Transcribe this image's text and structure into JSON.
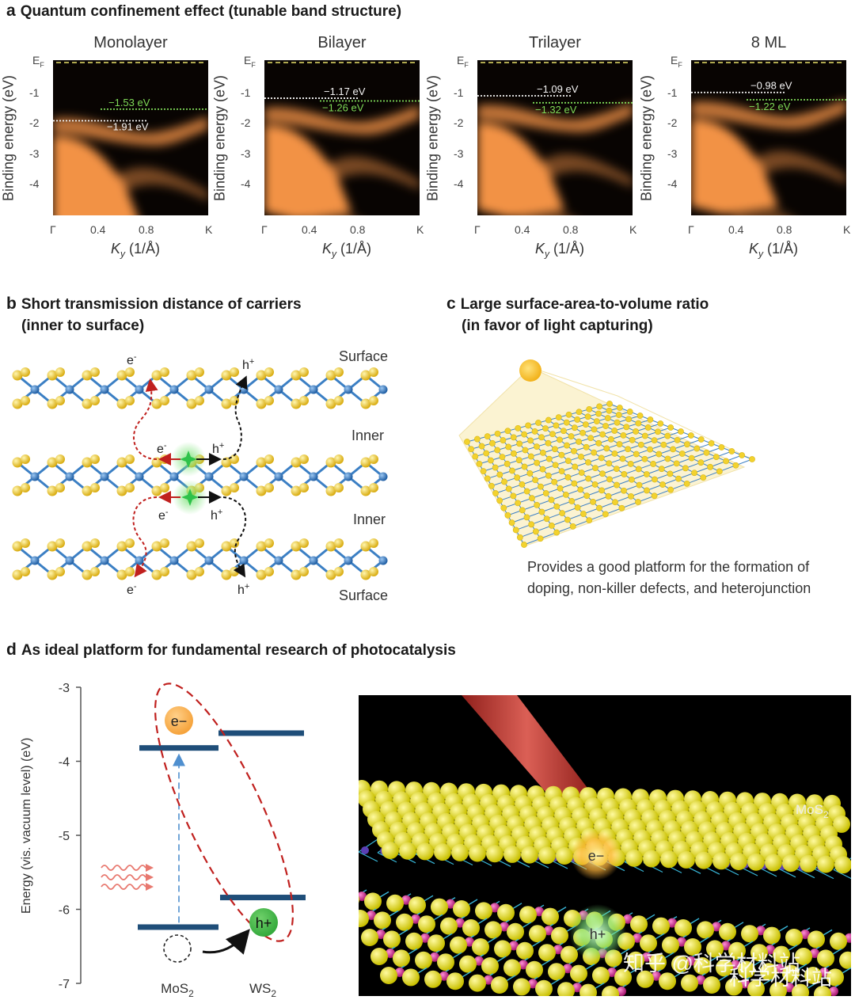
{
  "panel_a": {
    "letter": "a",
    "title": "Quantum confinement effect (tunable band structure)",
    "ylabel": "Binding energy (eV)",
    "xlabel_sym": "K",
    "xlabel_sub": "y",
    "xlabel_unit": " (1/Å)",
    "x_ticks": [
      "Γ",
      "0.4",
      "0.8",
      "K"
    ],
    "ef_label": "E",
    "ef_sub": "F",
    "y_ticks": [
      "-1",
      "-2",
      "-3",
      "-4"
    ],
    "plots": [
      {
        "title": "Monolayer",
        "white_val": "−1.91 eV",
        "green_val": "−1.53 eV"
      },
      {
        "title": "Bilayer",
        "white_val": "−1.17 eV",
        "green_val": "−1.26 eV"
      },
      {
        "title": "Trilayer",
        "white_val": "−1.09 eV",
        "green_val": "−1.32 eV"
      },
      {
        "title": "8 ML",
        "white_val": "−0.98 eV",
        "green_val": "−1.22 eV"
      }
    ],
    "colors": {
      "ef_line": "#e8e06a",
      "white_line": "#f4f4f4",
      "green_line": "#7ed957",
      "band": "#ff9a4a"
    }
  },
  "panel_b": {
    "letter": "b",
    "title_line1": "Short transmission distance of carriers",
    "title_line2": "(inner to surface)",
    "layer_labels": [
      "Surface",
      "Inner",
      "Inner",
      "Surface"
    ],
    "electron": "e",
    "hole": "h",
    "minus": "-",
    "plus": "+",
    "colors": {
      "sulfur": "#f2d22e",
      "metal": "#3b7fc4",
      "red_arrow": "#c0201e",
      "green_star": "#2ec24a"
    }
  },
  "panel_c": {
    "letter": "c",
    "title_line1": "Large surface-area-to-volume ratio",
    "title_line2": "(in favor of light capturing)",
    "caption_line1": "Provides a good platform for the formation of",
    "caption_line2": "doping, non-killer defects, and heterojunction"
  },
  "panel_d": {
    "letter": "d",
    "title": "As ideal platform for fundamental research of photocatalysis",
    "ylabel": "Energy (vis. vacuum level) (eV)",
    "y_ticks": [
      "-3",
      "-4",
      "-5",
      "-6",
      "-7"
    ],
    "electron_label": "e−",
    "hole_label": "h+",
    "mos2": "MoS",
    "ws2": "WS",
    "sub2": "2",
    "render": {
      "mos2_label": "MoS",
      "sub2": "2",
      "electron": "e−",
      "hole": "h+"
    },
    "watermark1": "知乎 @科学材料站",
    "watermark2": "科学材料站",
    "colors": {
      "band": "#1f4e79",
      "electron": "#f5a23a",
      "hole": "#34a93c",
      "ellipse": "#c0201e"
    }
  }
}
